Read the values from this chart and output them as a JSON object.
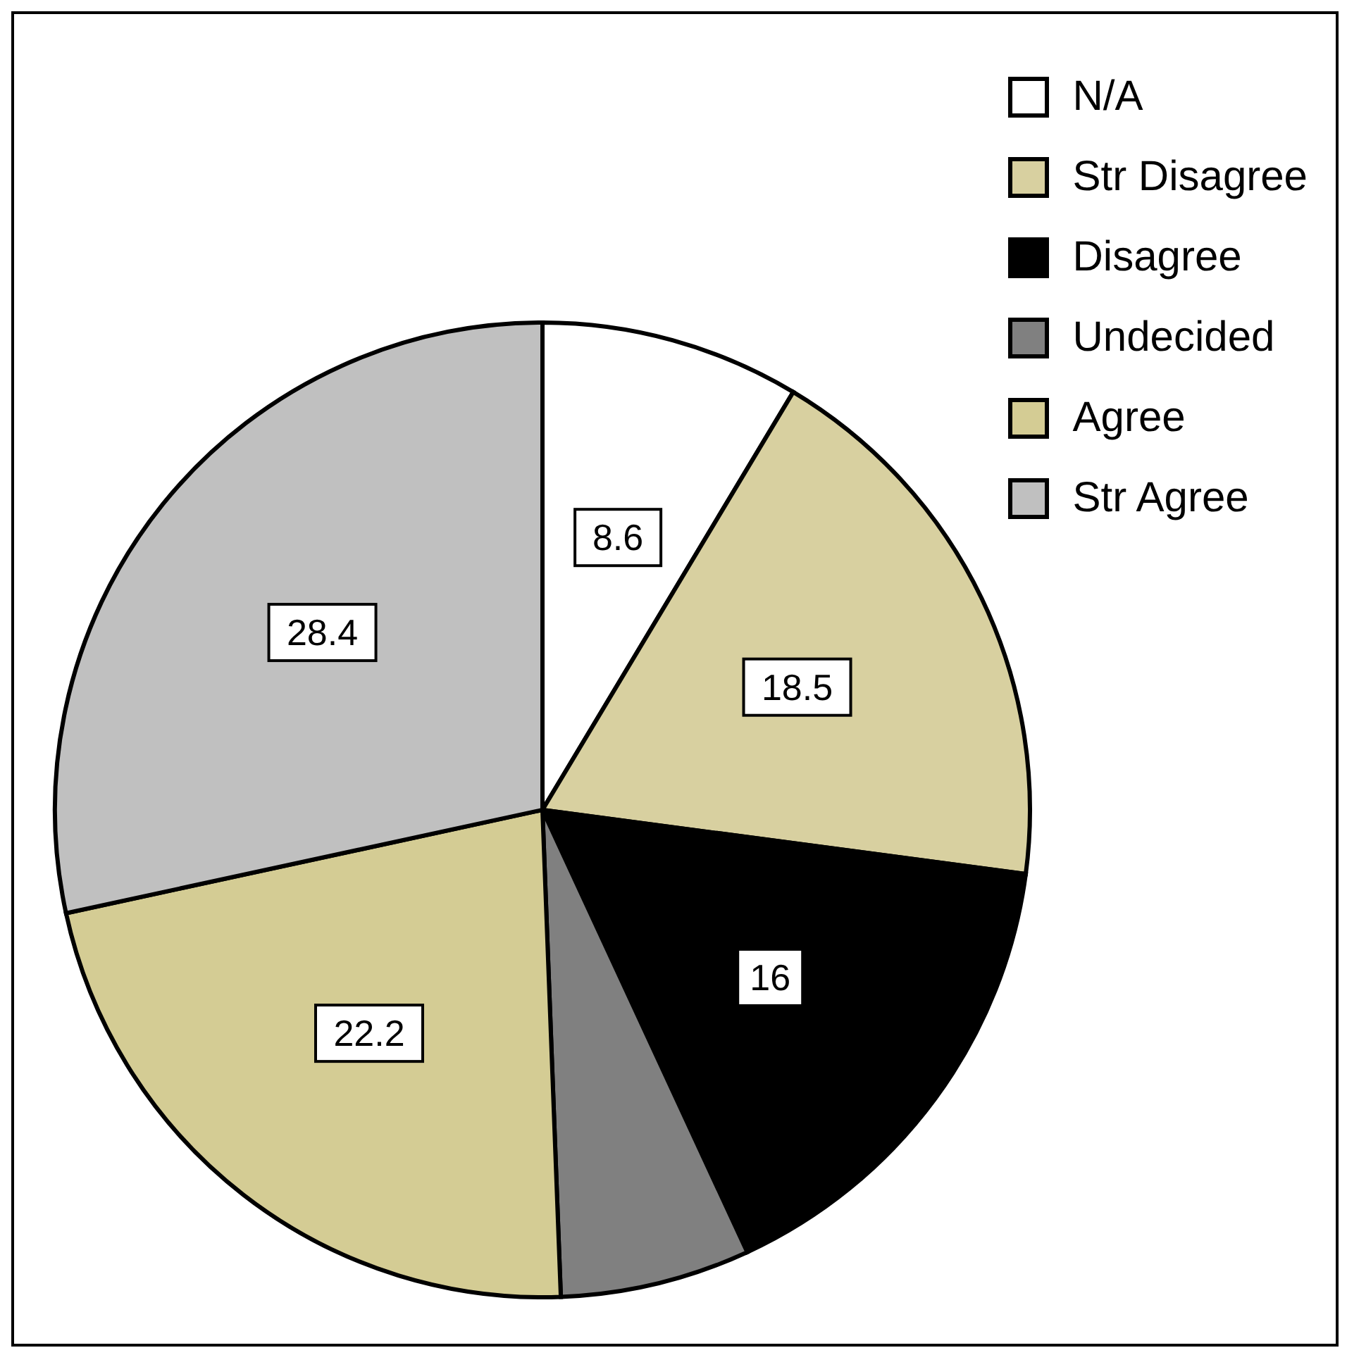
{
  "chart_data": {
    "type": "pie",
    "categories": [
      "N/A",
      "Str Disagree",
      "Disagree",
      "Undecided",
      "Agree",
      "Str Agree"
    ],
    "values": [
      8.6,
      18.5,
      16,
      6.3,
      22.2,
      28.4
    ],
    "value_labels": [
      "8.6",
      "18.5",
      "16",
      null,
      "22.2",
      "28.4"
    ],
    "colors": [
      "#ffffff",
      "#d8d0a0",
      "#000000",
      "#808080",
      "#d4cc94",
      "#c0c0c0"
    ],
    "legend": "top right"
  }
}
